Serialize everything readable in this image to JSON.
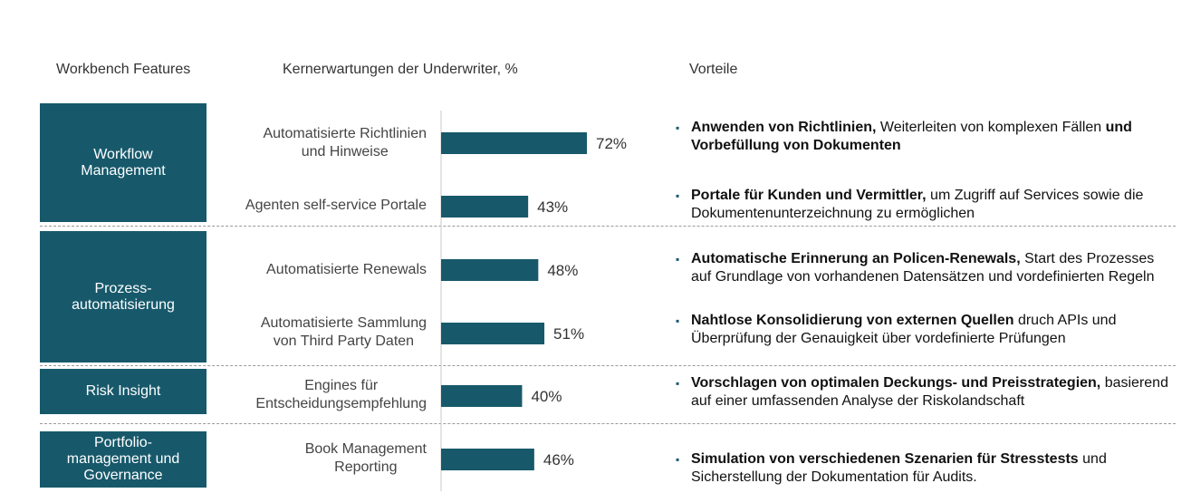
{
  "headers": {
    "features": "Workbench Features",
    "expectations": "Kernerwartungen der Underwriter, %",
    "benefits": "Vorteile"
  },
  "features": [
    {
      "label": "Workflow\nManagement"
    },
    {
      "label": "Prozess-\nautomatisierung"
    },
    {
      "label": "Risk Insight"
    },
    {
      "label": "Portfolio-\nmanagement und\nGovernance"
    }
  ],
  "chart_data": {
    "type": "bar",
    "orientation": "horizontal",
    "title": "Kernerwartungen der Underwriter, %",
    "categories": [
      "Automatisierte Richtlinien\nund Hinweise",
      "Agenten self-service Portale",
      "Automatisierte Renewals",
      "Automatisierte Sammlung\nvon Third Party Daten",
      "Engines für\nEntscheidungsempfehlung",
      "Book Management\nReporting"
    ],
    "values": [
      72,
      43,
      48,
      51,
      40,
      46
    ],
    "value_labels": [
      "72%",
      "43%",
      "48%",
      "51%",
      "40%",
      "46%"
    ],
    "xlim": [
      0,
      72
    ],
    "bar_color": "#17596b"
  },
  "benefits": [
    {
      "parts": [
        {
          "t": "Anwenden von Richtlinien,",
          "b": true
        },
        {
          "t": " Weiterleiten von komplexen Fällen ",
          "b": false
        },
        {
          "t": "und Vorbefüllung von Dokumenten",
          "b": true
        }
      ]
    },
    {
      "parts": [
        {
          "t": "Portale für Kunden und Vermittler,",
          "b": true
        },
        {
          "t": " um Zugriff auf Services sowie die Dokumentenunterzeichnung zu ermöglichen",
          "b": false
        }
      ]
    },
    {
      "parts": [
        {
          "t": "Automatische Erinnerung an Policen-Renewals,",
          "b": true
        },
        {
          "t": "  Start des Prozesses auf Grundlage von vorhandenen Datensätzen und vordefinierten Regeln",
          "b": false
        }
      ]
    },
    {
      "parts": [
        {
          "t": "Nahtlose Konsolidierung von externen Quellen",
          "b": true
        },
        {
          "t": " druch APIs und Überprüfung der Genauigkeit über vordefinierte Prüfungen",
          "b": false
        }
      ]
    },
    {
      "parts": [
        {
          "t": "Vorschlagen von optimalen Deckungs- und Preisstrategien,",
          "b": true
        },
        {
          "t": " basierend auf einer umfassenden Analyse der Riskolandschaft",
          "b": false
        }
      ]
    },
    {
      "parts": [
        {
          "t": "Simulation von verschiedenen Szenarien für Stresstests",
          "b": true
        },
        {
          "t": " und Sicherstellung der Dokumentation für Audits.",
          "b": false
        }
      ]
    }
  ],
  "bullet_char": "▪"
}
